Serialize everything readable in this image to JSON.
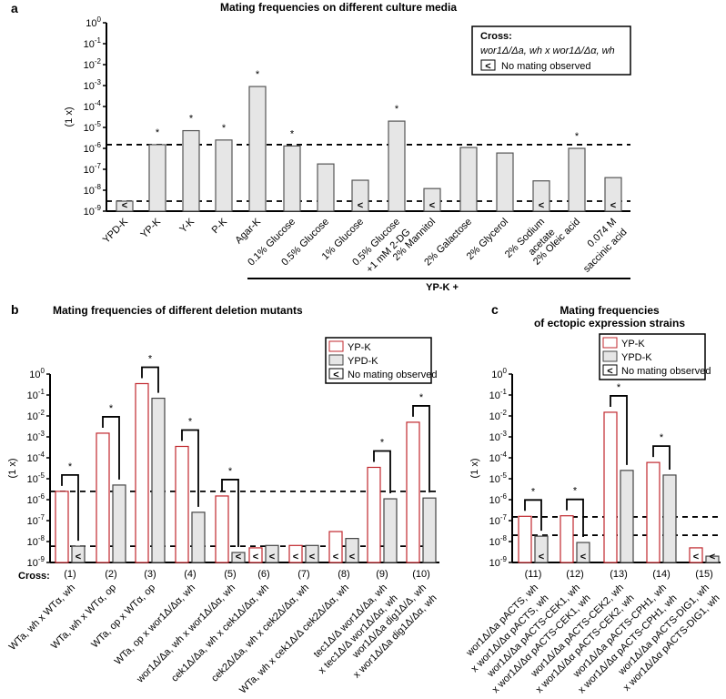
{
  "chart_data": [
    {
      "panel": "a",
      "type": "bar",
      "title": "Mating frequencies on different culture media",
      "ylabel": "(1 x)",
      "yscale": "log",
      "ylim": [
        1e-09,
        1
      ],
      "yticks": [
        "10^0",
        "10^-1",
        "10^-2",
        "10^-3",
        "10^-4",
        "10^-5",
        "10^-6",
        "10^-7",
        "10^-8",
        "10^-9"
      ],
      "categories": [
        [
          "YPD-K"
        ],
        [
          "YP-K"
        ],
        [
          "Y-K"
        ],
        [
          "P-K"
        ],
        [
          "Agar-K"
        ],
        [
          "0.1% Glucose"
        ],
        [
          "0.5% Glucose"
        ],
        [
          "1% Glucose"
        ],
        [
          "0.5% Glucose",
          "+1 mM 2-DG"
        ],
        [
          "2% Mannitol"
        ],
        [
          "2% Galactose"
        ],
        [
          "2% Glycerol"
        ],
        [
          "2% Sodium",
          "acetate"
        ],
        [
          "2% Oleic acid"
        ],
        [
          "0.074 M",
          "saccinic acid"
        ]
      ],
      "values": [
        3e-09,
        1.5e-06,
        7e-06,
        2.5e-06,
        0.0009,
        1.3e-06,
        1.8e-07,
        3e-08,
        2e-05,
        1.2e-08,
        1.1e-06,
        6e-07,
        2.8e-08,
        1e-06,
        4e-08
      ],
      "no_mating": [
        true,
        false,
        false,
        false,
        false,
        false,
        false,
        true,
        false,
        true,
        false,
        false,
        true,
        false,
        true
      ],
      "significant": [
        false,
        true,
        true,
        true,
        true,
        true,
        false,
        false,
        true,
        false,
        false,
        false,
        false,
        true,
        false
      ],
      "reference_lines": [
        1.5e-06,
        3e-09
      ],
      "group_label": "YP-K +",
      "legend": {
        "title": "Cross:",
        "cross": "wor1Δ/Δa, wh x wor1Δ/Δα, wh",
        "no_mating": "No mating observed",
        "placement": "top-right"
      }
    },
    {
      "panel": "b",
      "type": "bar",
      "title": "Mating frequencies of different deletion mutants",
      "ylabel": "(1 x)",
      "yscale": "log",
      "ylim": [
        1e-09,
        1
      ],
      "xprefix": "Cross:",
      "categories": [
        "(1)",
        "(2)",
        "(3)",
        "(4)",
        "(5)",
        "(6)",
        "(7)",
        "(8)",
        "(9)",
        "(10)"
      ],
      "cross_labels": [
        [
          "WTa, wh x WTα, wh"
        ],
        [
          "WTa, wh x WTα, op"
        ],
        [
          "WTa, op x WTα, op"
        ],
        [
          "WTa, op x wor1Δ/Δα, wh"
        ],
        [
          "wor1Δ/Δa, wh x wor1Δ/Δα, wh"
        ],
        [
          "cek1Δ/Δa, wh x cek1Δ/Δα, wh"
        ],
        [
          "cek2Δ/Δa, wh x cek2Δ/Δα, wh"
        ],
        [
          "WTa, wh x cek1Δ/Δ cek2Δ/Δα, wh"
        ],
        [
          "tec1Δ/Δ wor1Δ/Δa, wh",
          "x tec1Δ/Δ wor1Δ/Δα, wh"
        ],
        [
          "wor1Δ/Δa dig1Δ/Δ, wh",
          "x wor1Δ/Δa dig1Δ/Δα, wh"
        ]
      ],
      "series": [
        {
          "name": "YP-K",
          "color": "#c0272d",
          "values": [
            2.5e-06,
            0.0015,
            0.35,
            0.00035,
            1.5e-06,
            5e-09,
            6.5e-09,
            3e-08,
            3.5e-05,
            0.005
          ],
          "no_mating": [
            false,
            false,
            false,
            false,
            false,
            true,
            true,
            true,
            false,
            false
          ]
        },
        {
          "name": "YPD-K",
          "color": "#e6e6e6",
          "values": [
            6e-09,
            5e-06,
            0.07,
            2.5e-07,
            3e-09,
            6.5e-09,
            6.5e-09,
            1.4e-08,
            1.1e-06,
            1.2e-06
          ],
          "no_mating": [
            true,
            false,
            false,
            false,
            true,
            true,
            true,
            true,
            false,
            false
          ]
        }
      ],
      "significant": [
        true,
        true,
        true,
        true,
        true,
        false,
        false,
        false,
        true,
        true
      ],
      "reference_lines": [
        2.5e-06,
        6e-09
      ],
      "legend": {
        "items": [
          "YP-K",
          "YPD-K"
        ],
        "no_mating": "No mating observed",
        "placement": "top-right"
      }
    },
    {
      "panel": "c",
      "type": "bar",
      "title": [
        "Mating frequencies",
        "of ectopic expression strains"
      ],
      "ylabel": "(1 x)",
      "yscale": "log",
      "ylim": [
        1e-09,
        1
      ],
      "categories": [
        "(11)",
        "(12)",
        "(13)",
        "(14)",
        "(15)"
      ],
      "cross_labels": [
        [
          "wor1Δ/Δa pACTS, wh",
          "x wor1Δ/Δα pACTS, wh"
        ],
        [
          "wor1Δ/Δa pACTS-CEK1, wh",
          "x wor1Δ/Δα pACTS-CEK1, wh"
        ],
        [
          "wor1Δ/Δa pACTS-CEK2, wh",
          "x wor1Δ/Δα pACTS-CEK2, wh"
        ],
        [
          "wor1Δ/Δa pACTS-CPH1, wh",
          "x wor1Δ/Δα pACTS-CPH1, wh"
        ],
        [
          "wor1Δ/Δa pACTS-DIG1, wh",
          "x wor1Δ/Δα pACTS-DIG1, wh"
        ]
      ],
      "series": [
        {
          "name": "YP-K",
          "color": "#c0272d",
          "values": [
            1.6e-07,
            1.7e-07,
            0.015,
            6e-05,
            5e-09
          ],
          "no_mating": [
            false,
            false,
            false,
            false,
            true
          ]
        },
        {
          "name": "YPD-K",
          "color": "#e6e6e6",
          "values": [
            1.8e-08,
            9e-09,
            2.5e-05,
            1.5e-05,
            2e-09
          ],
          "no_mating": [
            true,
            true,
            false,
            false,
            true
          ]
        }
      ],
      "significant": [
        true,
        true,
        true,
        true,
        false
      ],
      "reference_lines": [
        1.5e-07,
        2e-08
      ],
      "legend": {
        "items": [
          "YP-K",
          "YPD-K"
        ],
        "no_mating": "No mating observed",
        "placement": "top-right"
      }
    }
  ],
  "panel_labels": [
    "a",
    "b",
    "c"
  ],
  "significance_mark": "*",
  "no_mating_symbol": "<"
}
